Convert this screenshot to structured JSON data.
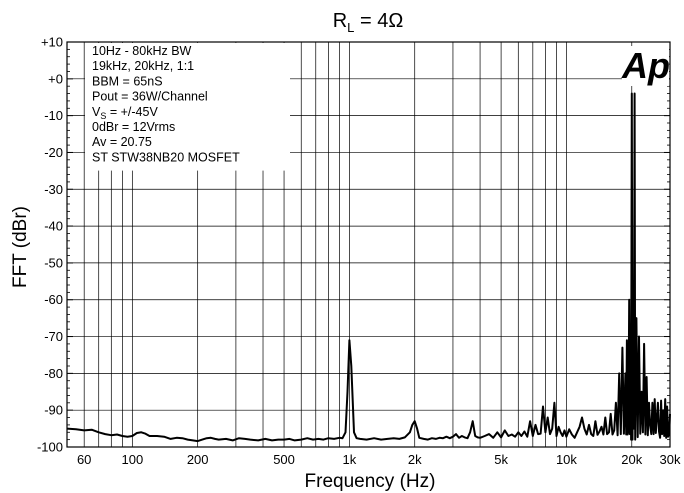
{
  "chart_data": {
    "type": "line",
    "title": {
      "main": "R",
      "sub": "L",
      "rest": " = 4Ω"
    },
    "xlabel": "Frequency (Hz)",
    "ylabel": "FFT (dBr)",
    "xscale": "log",
    "xlim": [
      50,
      30000
    ],
    "ylim": [
      -100,
      10
    ],
    "grid": true,
    "y_ticks": [
      {
        "value": 10,
        "label": "+10"
      },
      {
        "value": 0,
        "label": "+0"
      },
      {
        "value": -10,
        "label": "-10"
      },
      {
        "value": -20,
        "label": "-20"
      },
      {
        "value": -30,
        "label": "-30"
      },
      {
        "value": -40,
        "label": "-40"
      },
      {
        "value": -50,
        "label": "-50"
      },
      {
        "value": -60,
        "label": "-60"
      },
      {
        "value": -70,
        "label": "-70"
      },
      {
        "value": -80,
        "label": "-80"
      },
      {
        "value": -90,
        "label": "-90"
      },
      {
        "value": -100,
        "label": "-100"
      }
    ],
    "x_ticks": [
      {
        "value": 60,
        "label": "60"
      },
      {
        "value": 100,
        "label": "100"
      },
      {
        "value": 200,
        "label": "200"
      },
      {
        "value": 500,
        "label": "500"
      },
      {
        "value": 1000,
        "label": "1k"
      },
      {
        "value": 2000,
        "label": "2k"
      },
      {
        "value": 5000,
        "label": "5k"
      },
      {
        "value": 10000,
        "label": "10k"
      },
      {
        "value": 20000,
        "label": "20k"
      },
      {
        "value": 30000,
        "label": "30k"
      }
    ],
    "x_gridlines": [
      50,
      60,
      70,
      80,
      90,
      100,
      200,
      300,
      400,
      500,
      600,
      700,
      800,
      900,
      1000,
      2000,
      3000,
      4000,
      5000,
      6000,
      7000,
      8000,
      9000,
      10000,
      20000,
      30000
    ],
    "y_gridlines": [
      10,
      0,
      -10,
      -20,
      -30,
      -40,
      -50,
      -60,
      -70,
      -80,
      -90,
      -100
    ],
    "annotations": [
      {
        "id": "bw",
        "parts": [
          {
            "t": "10Hz - 80kHz BW"
          }
        ]
      },
      {
        "id": "freqs",
        "parts": [
          {
            "t": "19kHz, 20kHz, 1:1"
          }
        ]
      },
      {
        "id": "bbm",
        "parts": [
          {
            "t": "BBM = 65nS"
          }
        ]
      },
      {
        "id": "pout",
        "parts": [
          {
            "t": "Pout = 36W/Channel"
          }
        ]
      },
      {
        "id": "vs",
        "parts": [
          {
            "t": "V"
          },
          {
            "t": "S",
            "sub": true
          },
          {
            "t": " = +/-45V"
          }
        ]
      },
      {
        "id": "odbr",
        "parts": [
          {
            "t": "0dBr = 12Vrms"
          }
        ]
      },
      {
        "id": "av",
        "parts": [
          {
            "t": "Av = 20.75"
          }
        ]
      },
      {
        "id": "mosfet",
        "parts": [
          {
            "t": "ST STW38NB20 MOSFET"
          }
        ]
      }
    ],
    "logo": "Ap",
    "series": [
      {
        "color": "#000000",
        "x": [
          50,
          55,
          60,
          65,
          70,
          75,
          80,
          85,
          90,
          95,
          100,
          105,
          110,
          115,
          120,
          130,
          140,
          150,
          160,
          170,
          180,
          190,
          200,
          210,
          220,
          230,
          240,
          250,
          270,
          290,
          310,
          330,
          350,
          380,
          410,
          440,
          470,
          500,
          530,
          560,
          600,
          640,
          680,
          720,
          760,
          800,
          850,
          900,
          930,
          960,
          980,
          1000,
          1020,
          1050,
          1080,
          1120,
          1200,
          1300,
          1400,
          1500,
          1600,
          1700,
          1800,
          1900,
          1950,
          2000,
          2050,
          2100,
          2200,
          2300,
          2400,
          2500,
          2600,
          2700,
          2800,
          2900,
          3000,
          3100,
          3200,
          3300,
          3400,
          3500,
          3600,
          3700,
          3800,
          3900,
          4000,
          4200,
          4400,
          4600,
          4800,
          5000,
          5200,
          5400,
          5600,
          5800,
          6000,
          6200,
          6400,
          6600,
          6800,
          7000,
          7200,
          7400,
          7600,
          7800,
          8000,
          8200,
          8400,
          8600,
          8800,
          9000,
          9200,
          9400,
          9600,
          9800,
          10000,
          10300,
          10600,
          10900,
          11200,
          11500,
          11800,
          12100,
          12400,
          12700,
          13000,
          13300,
          13600,
          13900,
          14200,
          14500,
          14800,
          15100,
          15400,
          15700,
          16000,
          16300,
          16600,
          16900,
          17200,
          17500,
          17800,
          18100,
          18400,
          18700,
          18850,
          19000,
          19150,
          19300,
          19450,
          19600,
          19750,
          19850,
          20000,
          20150,
          20300,
          20450,
          20600,
          20750,
          21000,
          21300,
          21600,
          21900,
          22200,
          22500,
          22800,
          23100,
          23400,
          23700,
          24000,
          24300,
          24600,
          24900,
          25200,
          25500,
          25800,
          26100,
          26400,
          26700,
          27000,
          27300,
          27600,
          27900,
          28200,
          28500,
          28800,
          29100,
          29400,
          29700,
          30000
        ],
        "y": [
          -95,
          -95.2,
          -95.5,
          -95.3,
          -96,
          -96.5,
          -96.8,
          -96.6,
          -97,
          -97.2,
          -97,
          -96.2,
          -96,
          -96.4,
          -97,
          -97,
          -97.2,
          -97.8,
          -97.5,
          -97.6,
          -98,
          -98.2,
          -98.4,
          -98,
          -97.6,
          -97.5,
          -97.8,
          -98,
          -97.8,
          -98.2,
          -97.6,
          -97.8,
          -98,
          -98.2,
          -97.8,
          -98.2,
          -98,
          -98,
          -97.8,
          -98.2,
          -98,
          -97.6,
          -98,
          -97.8,
          -98,
          -97.6,
          -97.8,
          -97.5,
          -97.6,
          -96,
          -85,
          -71,
          -78,
          -96,
          -97.6,
          -97.8,
          -98,
          -97.6,
          -98,
          -97.8,
          -97.6,
          -97.8,
          -97.4,
          -96,
          -94,
          -93,
          -95,
          -97.5,
          -97.8,
          -98,
          -97.6,
          -97.8,
          -97.5,
          -97.6,
          -97.2,
          -97.6,
          -97.2,
          -96.5,
          -97.5,
          -97,
          -97.4,
          -97.6,
          -96,
          -93,
          -97,
          -97.4,
          -97.5,
          -97,
          -96.5,
          -97.5,
          -96,
          -97.4,
          -95.5,
          -97,
          -96.6,
          -97.2,
          -96,
          -97,
          -95.8,
          -97.2,
          -93,
          -97,
          -94,
          -96.5,
          -96.4,
          -89,
          -96,
          -92,
          -96.5,
          -95,
          -88,
          -97,
          -94.5,
          -96,
          -97,
          -95.5,
          -97.2,
          -95.2,
          -96.6,
          -97.5,
          -96,
          -94.5,
          -92,
          -95,
          -96.6,
          -94,
          -96.5,
          -97,
          -93,
          -96.7,
          -95.8,
          -94.5,
          -96.6,
          -92,
          -96.5,
          -96,
          -91,
          -96.6,
          -95.5,
          -88,
          -96.8,
          -80,
          -96.5,
          -73,
          -96.4,
          -80,
          -96.6,
          -71,
          -96.6,
          -95,
          -60,
          -96.5,
          -70,
          -98,
          -4,
          -98,
          -55,
          -95,
          -4,
          -98,
          -65,
          -97.3,
          -70,
          -96.4,
          -85,
          -96,
          -72,
          -96.6,
          -81,
          -96.8,
          -88,
          -94,
          -96.5,
          -88,
          -96.5,
          -87,
          -96.2,
          -92,
          -88,
          -95.8,
          -97.5,
          -87.4,
          -96.5,
          -90,
          -97,
          -87,
          -97.5,
          -89,
          -97.2,
          -96.5,
          -91
        ]
      }
    ]
  }
}
